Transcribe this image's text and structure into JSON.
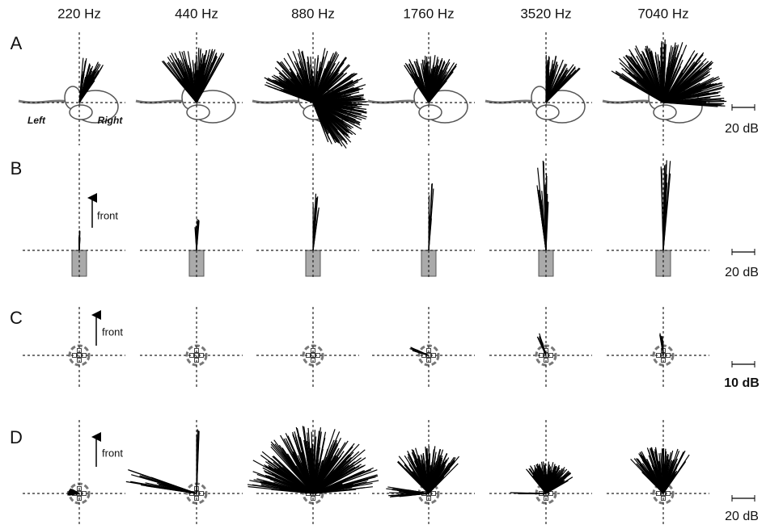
{
  "columns": [
    "220 Hz",
    "440 Hz",
    "880 Hz",
    "1760 Hz",
    "3520 Hz",
    "7040 Hz"
  ],
  "rows": [
    {
      "label": "A",
      "scale": "20 dB",
      "left": "Left",
      "right": "Right"
    },
    {
      "label": "B",
      "scale": "20 dB",
      "front": "front"
    },
    {
      "label": "C",
      "scale": "10 dB",
      "front": "front"
    },
    {
      "label": "D",
      "scale": "20 dB",
      "front": "front"
    }
  ]
}
